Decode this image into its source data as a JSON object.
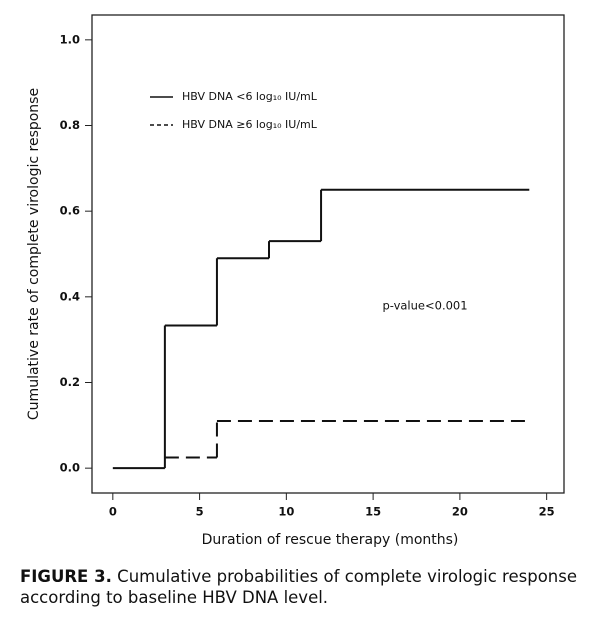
{
  "chart_data": {
    "type": "step",
    "x_label": "Duration of rescue therapy (months)",
    "y_label": "Cumulative rate of complete virologic response",
    "annotation": "p-value<0.001",
    "xlim": [
      -1.2,
      26.0
    ],
    "ylim": [
      -0.058,
      1.058
    ],
    "xticks": [
      0,
      5,
      10,
      15,
      20,
      25
    ],
    "yticks": [
      {
        "value": 0,
        "label": "0.0"
      },
      0.2,
      0.4,
      0.6,
      0.8,
      {
        "value": 1,
        "label": "1.0"
      }
    ],
    "legend": "upper left",
    "series": [
      {
        "name": "HBV DNA <6 log₁₀ IU/mL",
        "color": "#111111",
        "dash": false,
        "x": [
          0,
          3,
          6,
          9,
          12,
          24
        ],
        "values": [
          0,
          0.333,
          0.49,
          0.53,
          0.65,
          0.65
        ]
      },
      {
        "name": "HBV DNA ≥6 log₁₀ IU/mL",
        "color": "#111111",
        "dash": true,
        "x": [
          3,
          6,
          24
        ],
        "values": [
          0.025,
          0.11,
          0.11
        ]
      }
    ]
  },
  "caption": {
    "label": "FIGURE 3.",
    "text": "Cumulative probabilities of complete virologic response according to baseline HBV DNA level."
  }
}
